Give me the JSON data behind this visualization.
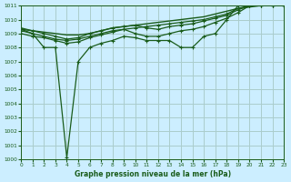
{
  "title": "Graphe pression niveau de la mer (hPa)",
  "background_color": "#cceeff",
  "grid_color": "#aacccc",
  "line_color": "#1a5c1a",
  "ylim": [
    1000,
    1011
  ],
  "xlim": [
    0,
    23
  ],
  "xticks": [
    0,
    1,
    2,
    3,
    4,
    5,
    6,
    7,
    8,
    9,
    10,
    11,
    12,
    13,
    14,
    15,
    16,
    17,
    18,
    19,
    20,
    21,
    22,
    23
  ],
  "yticks": [
    1000,
    1001,
    1002,
    1003,
    1004,
    1005,
    1006,
    1007,
    1008,
    1009,
    1010,
    1011
  ],
  "series": [
    {
      "x": [
        0,
        1,
        2,
        3,
        4,
        5,
        6,
        7,
        8,
        9,
        10,
        11,
        12,
        13,
        14,
        15,
        16,
        17,
        18,
        19,
        20,
        21,
        22,
        23
      ],
      "y": [
        1009.3,
        1009.0,
        1008.0,
        1008.0,
        1000.1,
        1007.0,
        1008.0,
        1008.3,
        1008.5,
        1008.8,
        1008.7,
        1008.5,
        1008.5,
        1008.5,
        1008.0,
        1008.0,
        1008.8,
        1009.0,
        1010.0,
        1011.0,
        1011.0,
        1011.0,
        1011.0,
        1011.0
      ],
      "has_markers": true,
      "lw": 0.9
    },
    {
      "x": [
        0,
        1,
        2,
        3,
        4,
        5,
        6,
        7,
        8,
        9,
        10,
        11,
        12,
        13,
        14,
        15,
        16,
        17,
        18,
        19,
        20,
        21,
        22,
        23
      ],
      "y": [
        1009.3,
        1009.2,
        1009.1,
        1009.0,
        1008.9,
        1008.9,
        1009.0,
        1009.2,
        1009.4,
        1009.5,
        1009.6,
        1009.7,
        1009.8,
        1009.9,
        1010.0,
        1010.1,
        1010.2,
        1010.4,
        1010.6,
        1010.8,
        1010.9,
        1011.0,
        1011.0,
        1011.0
      ],
      "has_markers": false,
      "lw": 1.0
    },
    {
      "x": [
        0,
        1,
        2,
        3,
        4,
        5,
        6,
        7,
        8,
        9,
        10,
        11,
        12,
        13,
        14,
        15,
        16,
        17,
        18,
        19,
        20,
        21,
        22,
        23
      ],
      "y": [
        1009.0,
        1008.8,
        1008.7,
        1008.5,
        1008.3,
        1008.4,
        1008.7,
        1008.9,
        1009.1,
        1009.3,
        1009.4,
        1009.5,
        1009.6,
        1009.7,
        1009.8,
        1009.9,
        1010.0,
        1010.2,
        1010.4,
        1010.8,
        1011.0,
        1011.0,
        1011.0,
        1011.0
      ],
      "has_markers": true,
      "lw": 0.9
    },
    {
      "x": [
        0,
        1,
        2,
        3,
        4,
        5,
        6,
        7,
        8,
        9,
        10,
        11,
        12,
        13,
        14,
        15,
        16,
        17,
        18,
        19,
        20,
        21,
        22,
        23
      ],
      "y": [
        1009.2,
        1009.0,
        1008.8,
        1008.6,
        1008.5,
        1008.6,
        1008.8,
        1009.0,
        1009.2,
        1009.3,
        1009.0,
        1008.8,
        1008.8,
        1009.0,
        1009.2,
        1009.3,
        1009.5,
        1009.8,
        1010.1,
        1010.5,
        1011.0,
        1011.0,
        1011.0,
        1011.0
      ],
      "has_markers": true,
      "lw": 0.9
    },
    {
      "x": [
        0,
        1,
        2,
        3,
        4,
        5,
        6,
        7,
        8,
        9,
        10,
        11,
        12,
        13,
        14,
        15,
        16,
        17,
        18,
        19,
        20,
        21,
        22,
        23
      ],
      "y": [
        1009.4,
        1009.2,
        1009.0,
        1008.8,
        1008.6,
        1008.7,
        1009.0,
        1009.2,
        1009.4,
        1009.5,
        1009.6,
        1009.4,
        1009.3,
        1009.5,
        1009.6,
        1009.7,
        1009.9,
        1010.1,
        1010.3,
        1010.7,
        1011.0,
        1011.0,
        1011.0,
        1011.0
      ],
      "has_markers": true,
      "lw": 0.9
    }
  ]
}
